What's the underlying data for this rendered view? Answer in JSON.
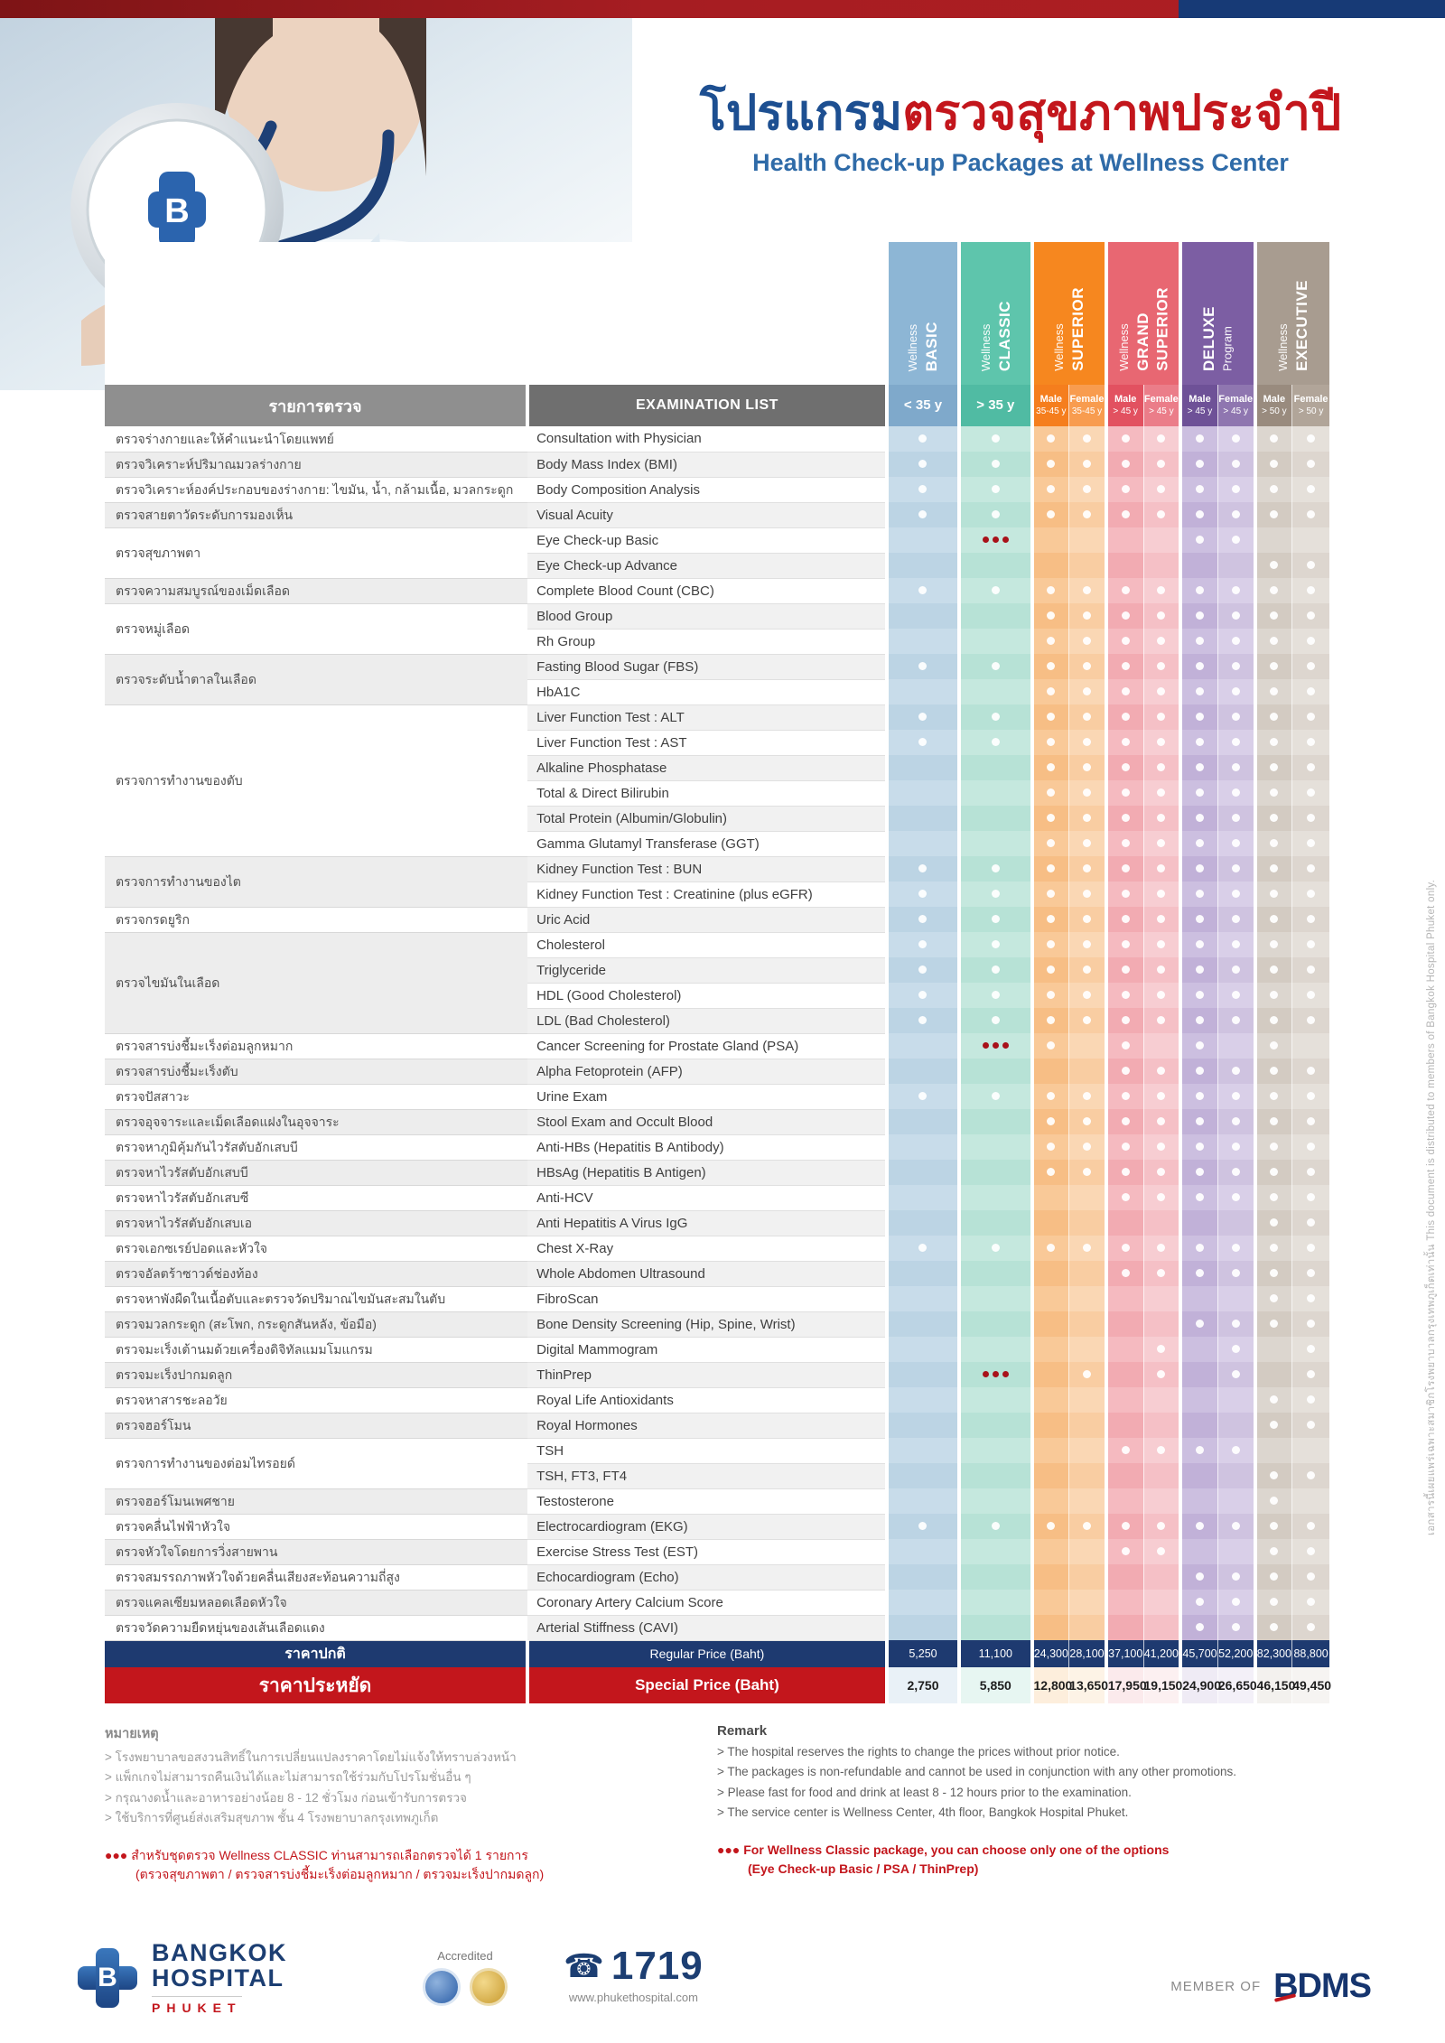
{
  "header": {
    "title_th_blue": "โปรแกรม",
    "title_th_red": "ตรวจสุขภาพประจำปี",
    "subtitle_en": "Health Check-up Packages at Wellness Center"
  },
  "side_note": "เอกสารนี้เผยแพร่เฉพาะสมาชิกโรงพยาบาลกรุงเทพภูเก็ตเท่านั้น    This document is distributed to members of Bangkok Hospital Phuket only.",
  "table": {
    "thai_header": "รายการตรวจ",
    "english_header": "EXAMINATION LIST",
    "packages": [
      {
        "id": "basic",
        "cols": 1,
        "bg": "#8DB6D5",
        "lines": [
          {
            "t": "Wellness",
            "b": false
          },
          {
            "t": "BASIC",
            "b": true
          }
        ]
      },
      {
        "id": "classic",
        "cols": 1,
        "bg": "#5EC5AC",
        "lines": [
          {
            "t": "Wellness",
            "b": false
          },
          {
            "t": "CLASSIC",
            "b": true
          }
        ]
      },
      {
        "id": "superior",
        "cols": 2,
        "bg": "#F6871F",
        "lines": [
          {
            "t": "Wellness",
            "b": false
          },
          {
            "t": "SUPERIOR",
            "b": true
          }
        ]
      },
      {
        "id": "grand-superior",
        "cols": 2,
        "bg": "#E86772",
        "lines": [
          {
            "t": "Wellness",
            "b": false
          },
          {
            "t": "GRAND",
            "b": true
          },
          {
            "t": "SUPERIOR",
            "b": true
          }
        ]
      },
      {
        "id": "deluxe",
        "cols": 2,
        "bg": "#7C5EA3",
        "lines": [
          {
            "t": "DELUXE",
            "b": true
          },
          {
            "t": "Program",
            "b": false
          }
        ]
      },
      {
        "id": "executive",
        "cols": 2,
        "bg": "#A89C90",
        "lines": [
          {
            "t": "Wellness",
            "b": false
          },
          {
            "t": "EXECUTIVE",
            "b": true
          }
        ]
      }
    ],
    "columns": [
      {
        "id": "basic",
        "sub": "< 35 y",
        "sub_bg": "#7FA9CB",
        "body": "#C8DCEA",
        "body_alt": "#BCD4E4",
        "sp_bg": "#E9F1F7"
      },
      {
        "id": "classic",
        "sub": "> 35 y",
        "sub_bg": "#50BBA3",
        "body": "#C5E8DE",
        "body_alt": "#B7E2D6",
        "sp_bg": "#E7F6F2"
      },
      {
        "id": "superior-male",
        "sub": "Male",
        "sub2": "35-45 y",
        "sub_bg": "#F57E1D",
        "body": "#F9C998",
        "body_alt": "#F7BE85",
        "sp_bg": "#FDEEDC"
      },
      {
        "id": "superior-female",
        "sub": "Female",
        "sub2": "35-45 y",
        "sub_bg": "#F89C4F",
        "body": "#FAD7B4",
        "body_alt": "#F9CDA2",
        "sp_bg": "#FDF3E6"
      },
      {
        "id": "grand-superior-male",
        "sub": "Male",
        "sub2": "> 45 y",
        "sub_bg": "#E25160",
        "body": "#F5BAC0",
        "body_alt": "#F2ABB2",
        "sp_bg": "#FBEAEC"
      },
      {
        "id": "grand-superior-female",
        "sub": "Female",
        "sub2": "> 45 y",
        "sub_bg": "#EB7D89",
        "body": "#F7CDD2",
        "body_alt": "#F5C0C6",
        "sp_bg": "#FCF0F1"
      },
      {
        "id": "deluxe-male",
        "sub": "Male",
        "sub2": "> 45 y",
        "sub_bg": "#6E5197",
        "body": "#CCBFE0",
        "body_alt": "#C1B1D8",
        "sp_bg": "#EFEBF5"
      },
      {
        "id": "deluxe-female",
        "sub": "Female",
        "sub2": "> 45 y",
        "sub_bg": "#8F76B0",
        "body": "#D9CFE8",
        "body_alt": "#CFC3E0",
        "sp_bg": "#F3F0F8"
      },
      {
        "id": "executive-male",
        "sub": "Male",
        "sub2": "> 50 y",
        "sub_bg": "#998B7E",
        "body": "#DCD6CF",
        "body_alt": "#D3CBC2",
        "sp_bg": "#F3F1EE"
      },
      {
        "id": "executive-female",
        "sub": "Female",
        "sub2": "> 50 y",
        "sub_bg": "#B1A599",
        "body": "#E5E0DA",
        "body_alt": "#DDD6CF",
        "sp_bg": "#F6F4F2"
      }
    ],
    "rows": [
      {
        "th": "ตรวจร่างกายและให้คำแนะนำโดยแพทย์",
        "span": 1,
        "en": "Consultation with Physician",
        "d": [
          1,
          1,
          1,
          1,
          1,
          1,
          1,
          1,
          1,
          1
        ]
      },
      {
        "th": "ตรวจวิเคราะห์ปริมาณมวลร่างกาย",
        "span": 1,
        "en": "Body Mass Index (BMI)",
        "d": [
          1,
          1,
          1,
          1,
          1,
          1,
          1,
          1,
          1,
          1
        ]
      },
      {
        "th": "ตรวจวิเคราะห์องค์ประกอบของร่างกาย: ไขมัน, น้ำ, กล้ามเนื้อ, มวลกระดูก",
        "span": 1,
        "en": "Body Composition Analysis",
        "d": [
          1,
          1,
          1,
          1,
          1,
          1,
          1,
          1,
          1,
          1
        ]
      },
      {
        "th": "ตรวจสายตาวัดระดับการมองเห็น",
        "span": 1,
        "en": "Visual Acuity",
        "d": [
          1,
          1,
          1,
          1,
          1,
          1,
          1,
          1,
          1,
          1
        ]
      },
      {
        "th": "ตรวจสุขภาพตา",
        "span": 2,
        "en": "Eye Check-up Basic",
        "d": [
          0,
          2,
          0,
          0,
          0,
          0,
          1,
          1,
          0,
          0
        ]
      },
      {
        "en": "Eye Check-up Advance",
        "d": [
          0,
          0,
          0,
          0,
          0,
          0,
          0,
          0,
          1,
          1
        ]
      },
      {
        "th": "ตรวจความสมบูรณ์ของเม็ดเลือด",
        "span": 1,
        "en": "Complete Blood Count (CBC)",
        "d": [
          1,
          1,
          1,
          1,
          1,
          1,
          1,
          1,
          1,
          1
        ]
      },
      {
        "th": "ตรวจหมู่เลือด",
        "span": 2,
        "en": "Blood Group",
        "d": [
          0,
          0,
          1,
          1,
          1,
          1,
          1,
          1,
          1,
          1
        ]
      },
      {
        "en": "Rh Group",
        "d": [
          0,
          0,
          1,
          1,
          1,
          1,
          1,
          1,
          1,
          1
        ]
      },
      {
        "th": "ตรวจระดับน้ำตาลในเลือด",
        "span": 2,
        "en": "Fasting Blood Sugar (FBS)",
        "d": [
          1,
          1,
          1,
          1,
          1,
          1,
          1,
          1,
          1,
          1
        ]
      },
      {
        "en": "HbA1C",
        "d": [
          0,
          0,
          1,
          1,
          1,
          1,
          1,
          1,
          1,
          1
        ]
      },
      {
        "th": "ตรวจการทำงานของตับ",
        "span": 6,
        "en": "Liver Function Test : ALT",
        "d": [
          1,
          1,
          1,
          1,
          1,
          1,
          1,
          1,
          1,
          1
        ]
      },
      {
        "en": "Liver Function Test : AST",
        "d": [
          1,
          1,
          1,
          1,
          1,
          1,
          1,
          1,
          1,
          1
        ]
      },
      {
        "en": "Alkaline Phosphatase",
        "d": [
          0,
          0,
          1,
          1,
          1,
          1,
          1,
          1,
          1,
          1
        ]
      },
      {
        "en": "Total & Direct Bilirubin",
        "d": [
          0,
          0,
          1,
          1,
          1,
          1,
          1,
          1,
          1,
          1
        ]
      },
      {
        "en": "Total Protein (Albumin/Globulin)",
        "d": [
          0,
          0,
          1,
          1,
          1,
          1,
          1,
          1,
          1,
          1
        ]
      },
      {
        "en": "Gamma Glutamyl Transferase (GGT)",
        "d": [
          0,
          0,
          1,
          1,
          1,
          1,
          1,
          1,
          1,
          1
        ]
      },
      {
        "th": "ตรวจการทำงานของไต",
        "span": 2,
        "en": "Kidney Function Test : BUN",
        "d": [
          1,
          1,
          1,
          1,
          1,
          1,
          1,
          1,
          1,
          1
        ]
      },
      {
        "en": "Kidney Function Test : Creatinine (plus eGFR)",
        "d": [
          1,
          1,
          1,
          1,
          1,
          1,
          1,
          1,
          1,
          1
        ]
      },
      {
        "th": "ตรวจกรดยูริก",
        "span": 1,
        "en": "Uric Acid",
        "d": [
          1,
          1,
          1,
          1,
          1,
          1,
          1,
          1,
          1,
          1
        ]
      },
      {
        "th": "ตรวจไขมันในเลือด",
        "span": 4,
        "en": "Cholesterol",
        "d": [
          1,
          1,
          1,
          1,
          1,
          1,
          1,
          1,
          1,
          1
        ]
      },
      {
        "en": "Triglyceride",
        "d": [
          1,
          1,
          1,
          1,
          1,
          1,
          1,
          1,
          1,
          1
        ]
      },
      {
        "en": "HDL (Good Cholesterol)",
        "d": [
          1,
          1,
          1,
          1,
          1,
          1,
          1,
          1,
          1,
          1
        ]
      },
      {
        "en": "LDL (Bad Cholesterol)",
        "d": [
          1,
          1,
          1,
          1,
          1,
          1,
          1,
          1,
          1,
          1
        ]
      },
      {
        "th": "ตรวจสารบ่งชี้มะเร็งต่อมลูกหมาก",
        "span": 1,
        "en": "Cancer Screening for Prostate Gland (PSA)",
        "d": [
          0,
          2,
          1,
          0,
          1,
          0,
          1,
          0,
          1,
          0
        ]
      },
      {
        "th": "ตรวจสารบ่งชี้มะเร็งตับ",
        "span": 1,
        "en": "Alpha Fetoprotein (AFP)",
        "d": [
          0,
          0,
          0,
          0,
          1,
          1,
          1,
          1,
          1,
          1
        ]
      },
      {
        "th": "ตรวจปัสสาวะ",
        "span": 1,
        "en": "Urine Exam",
        "d": [
          1,
          1,
          1,
          1,
          1,
          1,
          1,
          1,
          1,
          1
        ]
      },
      {
        "th": "ตรวจอุจจาระและเม็ดเลือดแฝงในอุจจาระ",
        "span": 1,
        "en": "Stool Exam and Occult Blood",
        "d": [
          0,
          0,
          1,
          1,
          1,
          1,
          1,
          1,
          1,
          1
        ]
      },
      {
        "th": "ตรวจหาภูมิคุ้มกันไวรัสตับอักเสบบี",
        "span": 1,
        "en": "Anti-HBs (Hepatitis B Antibody)",
        "d": [
          0,
          0,
          1,
          1,
          1,
          1,
          1,
          1,
          1,
          1
        ]
      },
      {
        "th": "ตรวจหาไวรัสตับอักเสบบี",
        "span": 1,
        "en": "HBsAg (Hepatitis B Antigen)",
        "d": [
          0,
          0,
          1,
          1,
          1,
          1,
          1,
          1,
          1,
          1
        ]
      },
      {
        "th": "ตรวจหาไวรัสตับอักเสบซี",
        "span": 1,
        "en": "Anti-HCV",
        "d": [
          0,
          0,
          0,
          0,
          1,
          1,
          1,
          1,
          1,
          1
        ]
      },
      {
        "th": "ตรวจหาไวรัสตับอักเสบเอ",
        "span": 1,
        "en": "Anti Hepatitis A Virus IgG",
        "d": [
          0,
          0,
          0,
          0,
          0,
          0,
          0,
          0,
          1,
          1
        ]
      },
      {
        "th": "ตรวจเอกซเรย์ปอดและหัวใจ",
        "span": 1,
        "en": "Chest X-Ray",
        "d": [
          1,
          1,
          1,
          1,
          1,
          1,
          1,
          1,
          1,
          1
        ]
      },
      {
        "th": "ตรวจอัลตร้าซาวด์ช่องท้อง",
        "span": 1,
        "en": "Whole Abdomen Ultrasound",
        "d": [
          0,
          0,
          0,
          0,
          1,
          1,
          1,
          1,
          1,
          1
        ]
      },
      {
        "th": "ตรวจหาพังผืดในเนื้อตับและตรวจวัดปริมาณไขมันสะสมในตับ",
        "span": 1,
        "en": "FibroScan",
        "d": [
          0,
          0,
          0,
          0,
          0,
          0,
          0,
          0,
          1,
          1
        ]
      },
      {
        "th": "ตรวจมวลกระดูก (สะโพก, กระดูกสันหลัง, ข้อมือ)",
        "span": 1,
        "en": "Bone Density Screening (Hip, Spine, Wrist)",
        "d": [
          0,
          0,
          0,
          0,
          0,
          0,
          1,
          1,
          1,
          1
        ]
      },
      {
        "th": "ตรวจมะเร็งเต้านมด้วยเครื่องดิจิทัลแมมโมแกรม",
        "span": 1,
        "en": "Digital Mammogram",
        "d": [
          0,
          0,
          0,
          0,
          0,
          1,
          0,
          1,
          0,
          1
        ]
      },
      {
        "th": "ตรวจมะเร็งปากมดลูก",
        "span": 1,
        "en": "ThinPrep",
        "d": [
          0,
          2,
          0,
          1,
          0,
          1,
          0,
          1,
          0,
          1
        ]
      },
      {
        "th": "ตรวจหาสารชะลอวัย",
        "span": 1,
        "en": "Royal Life Antioxidants",
        "d": [
          0,
          0,
          0,
          0,
          0,
          0,
          0,
          0,
          1,
          1
        ]
      },
      {
        "th": "ตรวจฮอร์โมน",
        "span": 1,
        "en": "Royal Hormones",
        "d": [
          0,
          0,
          0,
          0,
          0,
          0,
          0,
          0,
          1,
          1
        ]
      },
      {
        "th": "ตรวจการทำงานของต่อมไทรอยด์",
        "span": 2,
        "en": "TSH",
        "d": [
          0,
          0,
          0,
          0,
          1,
          1,
          1,
          1,
          0,
          0
        ]
      },
      {
        "en": "TSH, FT3, FT4",
        "d": [
          0,
          0,
          0,
          0,
          0,
          0,
          0,
          0,
          1,
          1
        ]
      },
      {
        "th": "ตรวจฮอร์โมนเพศชาย",
        "span": 1,
        "en": "Testosterone",
        "d": [
          0,
          0,
          0,
          0,
          0,
          0,
          0,
          0,
          1,
          0
        ]
      },
      {
        "th": "ตรวจคลื่นไฟฟ้าหัวใจ",
        "span": 1,
        "en": "Electrocardiogram (EKG)",
        "d": [
          1,
          1,
          1,
          1,
          1,
          1,
          1,
          1,
          1,
          1
        ]
      },
      {
        "th": "ตรวจหัวใจโดยการวิ่งสายพาน",
        "span": 1,
        "en": "Exercise Stress Test (EST)",
        "d": [
          0,
          0,
          0,
          0,
          1,
          1,
          0,
          0,
          1,
          1
        ]
      },
      {
        "th": "ตรวจสมรรถภาพหัวใจด้วยคลื่นเสียงสะท้อนความถี่สูง",
        "span": 1,
        "en": "Echocardiogram (Echo)",
        "d": [
          0,
          0,
          0,
          0,
          0,
          0,
          1,
          1,
          1,
          1
        ]
      },
      {
        "th": "ตรวจแคลเซียมหลอดเลือดหัวใจ",
        "span": 1,
        "en": "Coronary Artery Calcium Score",
        "d": [
          0,
          0,
          0,
          0,
          0,
          0,
          1,
          1,
          1,
          1
        ]
      },
      {
        "th": "ตรวจวัดความยืดหยุ่นของเส้นเลือดแดง",
        "span": 1,
        "en": "Arterial Stiffness (CAVI)",
        "d": [
          0,
          0,
          0,
          0,
          0,
          0,
          1,
          1,
          1,
          1
        ]
      }
    ]
  },
  "prices": {
    "regular_th": "ราคาปกติ",
    "regular_en": "Regular Price (Baht)",
    "regular_values": [
      "5,250",
      "11,100",
      "24,300",
      "28,100",
      "37,100",
      "41,200",
      "45,700",
      "52,200",
      "82,300",
      "88,800"
    ],
    "special_th": "ราคาประหยัด",
    "special_en": "Special Price (Baht)",
    "special_values": [
      "2,750",
      "5,850",
      "12,800",
      "13,650",
      "17,950",
      "19,150",
      "24,900",
      "26,650",
      "46,150",
      "49,450"
    ]
  },
  "notes": {
    "th_title": "หมายเหตุ",
    "th_lines": [
      "> โรงพยาบาลขอสงวนสิทธิ์ในการเปลี่ยนแปลงราคาโดยไม่แจ้งให้ทราบล่วงหน้า",
      "> แพ็กเกจไม่สามารถคืนเงินได้และไม่สามารถใช้ร่วมกับโปรโมชั่นอื่น ๆ",
      "> กรุณางดน้ำและอาหารอย่างน้อย 8 - 12 ชั่วโมง ก่อนเข้ารับการตรวจ",
      "> ใช้บริการที่ศูนย์ส่งเสริมสุขภาพ ชั้น 4 โรงพยาบาลกรุงเทพภูเก็ต"
    ],
    "en_title": "Remark",
    "en_lines": [
      "> The hospital reserves the rights to change the prices without prior notice.",
      "> The packages is non-refundable and cannot be used in conjunction with any other promotions.",
      "> Please fast for food and drink at least 8 - 12 hours prior to the examination.",
      "> The service center is Wellness Center, 4th floor, Bangkok Hospital Phuket."
    ],
    "red_th_1": "●●● สำหรับชุดตรวจ Wellness CLASSIC ท่านสามารถเลือกตรวจได้ 1 รายการ",
    "red_th_2": "(ตรวจสุขภาพตา / ตรวจสารบ่งชี้มะเร็งต่อมลูกหมาก / ตรวจมะเร็งปากมดลูก)",
    "red_en_1": "●●● For Wellness Classic package, you can choose only one of the options",
    "red_en_2": "(Eye Check-up Basic / PSA / ThinPrep)"
  },
  "footer": {
    "hospital_name_1": "BANGKOK",
    "hospital_name_2": "HOSPITAL",
    "hospital_city": "PHUKET",
    "logo_letter": "B",
    "accredited_label": "Accredited",
    "phone": "1719",
    "website": "www.phukethospital.com",
    "member_of": "MEMBER OF",
    "member_logo": "BDMS"
  }
}
